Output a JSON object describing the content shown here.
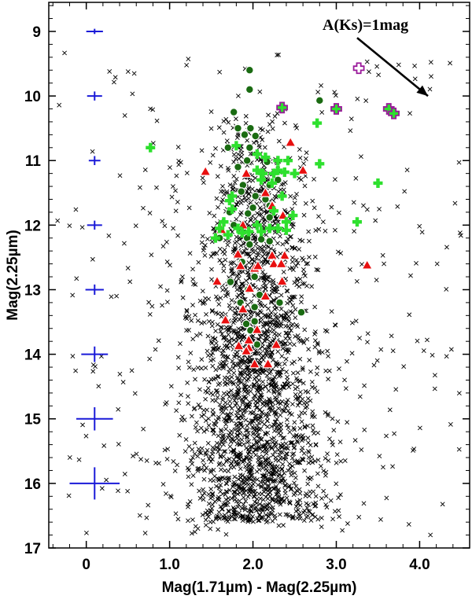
{
  "chart_data": {
    "type": "scatter",
    "title": "",
    "xlabel": "Mag(1.71µm) - Mag(2.25µm)",
    "ylabel": "Mag(2.25µm)",
    "xlim": [
      -0.45,
      4.6
    ],
    "ylim": [
      17,
      8.55
    ],
    "y_inverted": true,
    "x_ticks": [
      "0",
      "1.0",
      "2.0",
      "3.0",
      "4.0"
    ],
    "x_tick_values": [
      0,
      1,
      2,
      3,
      4
    ],
    "y_ticks": [
      "9",
      "10",
      "11",
      "12",
      "13",
      "14",
      "15",
      "16",
      "17"
    ],
    "y_tick_values": [
      9,
      10,
      11,
      12,
      13,
      14,
      15,
      16,
      17
    ],
    "grid": false,
    "legend": "none",
    "annotation": {
      "text": "A(Ks)=1mag",
      "vector_from": [
        3.25,
        9.1
      ],
      "vector_to": [
        4.1,
        10.0
      ]
    },
    "error_bars": [
      {
        "x": 0.1,
        "y": 9,
        "xerr": 0.1,
        "yerr": 0.04
      },
      {
        "x": 0.1,
        "y": 10,
        "xerr": 0.09,
        "yerr": 0.07
      },
      {
        "x": 0.1,
        "y": 11,
        "xerr": 0.07,
        "yerr": 0.07
      },
      {
        "x": 0.1,
        "y": 12,
        "xerr": 0.09,
        "yerr": 0.07
      },
      {
        "x": 0.1,
        "y": 13,
        "xerr": 0.11,
        "yerr": 0.08
      },
      {
        "x": 0.1,
        "y": 14,
        "xerr": 0.16,
        "yerr": 0.12
      },
      {
        "x": 0.1,
        "y": 15,
        "xerr": 0.22,
        "yerr": 0.18
      },
      {
        "x": 0.1,
        "y": 16,
        "xerr": 0.3,
        "yerr": 0.25
      }
    ],
    "background_sources": {
      "marker": "x",
      "color": "#000000",
      "count": 2600,
      "core_center": [
        2.05,
        14.5
      ],
      "note": "dense field-star cloud concentrated at color 1.5-2.5 and Mag 10-16.5, with sparse outliers over the whole diagram"
    },
    "series": [
      {
        "marker": "circle",
        "color": "#1a6b12",
        "points": [
          [
            1.96,
            9.6
          ],
          [
            1.96,
            9.9
          ],
          [
            2.8,
            10.07
          ],
          [
            1.77,
            10.25
          ],
          [
            1.82,
            10.5
          ],
          [
            1.97,
            10.5
          ],
          [
            2.03,
            10.62
          ],
          [
            1.9,
            10.6
          ],
          [
            1.7,
            10.8
          ],
          [
            1.96,
            10.8
          ],
          [
            1.93,
            11.0
          ],
          [
            2.17,
            11.02
          ],
          [
            1.82,
            11.1
          ],
          [
            2.3,
            11.3
          ],
          [
            1.88,
            11.38
          ],
          [
            2.2,
            11.38
          ],
          [
            1.86,
            11.48
          ],
          [
            2.03,
            11.55
          ],
          [
            2.15,
            11.6
          ],
          [
            2.2,
            11.7
          ],
          [
            2.0,
            11.73
          ],
          [
            1.94,
            11.82
          ],
          [
            1.72,
            11.8
          ],
          [
            2.2,
            11.88
          ],
          [
            1.77,
            12.0
          ],
          [
            1.6,
            12.2
          ],
          [
            1.93,
            12.2
          ],
          [
            2.1,
            12.22
          ],
          [
            2.2,
            12.25
          ],
          [
            1.96,
            12.3
          ],
          [
            1.87,
            12.57
          ],
          [
            2.02,
            12.8
          ],
          [
            1.73,
            12.88
          ],
          [
            1.94,
            13.0
          ],
          [
            2.08,
            13.08
          ],
          [
            2.32,
            13.2
          ],
          [
            1.85,
            13.2
          ],
          [
            2.02,
            13.27
          ],
          [
            2.58,
            13.35
          ],
          [
            1.92,
            13.53
          ],
          [
            2.02,
            13.49
          ],
          [
            1.97,
            13.63
          ],
          [
            2.05,
            13.85
          ]
        ]
      },
      {
        "marker": "triangle",
        "color": "#e81010",
        "points": [
          [
            2.45,
            10.72
          ],
          [
            1.43,
            11.17
          ],
          [
            2.6,
            11.15
          ],
          [
            1.92,
            11.2
          ],
          [
            2.15,
            11.5
          ],
          [
            2.23,
            11.7
          ],
          [
            2.36,
            11.85
          ],
          [
            1.88,
            12.0
          ],
          [
            1.62,
            12.07
          ],
          [
            1.82,
            12.45
          ],
          [
            2.23,
            12.47
          ],
          [
            2.38,
            12.47
          ],
          [
            1.85,
            12.63
          ],
          [
            2.25,
            12.6
          ],
          [
            2.02,
            12.67
          ],
          [
            2.06,
            12.63
          ],
          [
            2.34,
            12.6
          ],
          [
            1.57,
            12.87
          ],
          [
            2.35,
            12.87
          ],
          [
            1.96,
            12.98
          ],
          [
            3.37,
            12.62
          ],
          [
            2.15,
            13.1
          ],
          [
            1.88,
            13.3
          ],
          [
            2.05,
            13.62
          ],
          [
            1.67,
            13.47
          ],
          [
            1.83,
            13.87
          ],
          [
            1.95,
            13.9
          ],
          [
            1.92,
            13.95
          ],
          [
            2.28,
            13.85
          ],
          [
            2.02,
            14.15
          ],
          [
            2.18,
            14.15
          ],
          [
            1.95,
            13.78
          ]
        ]
      },
      {
        "marker": "plus",
        "color": "#2ee02e",
        "points": [
          [
            0.77,
            10.8
          ],
          [
            2.77,
            10.42
          ],
          [
            1.8,
            10.77
          ],
          [
            2.05,
            10.9
          ],
          [
            2.15,
            10.95
          ],
          [
            2.3,
            11.0
          ],
          [
            2.42,
            11.0
          ],
          [
            2.8,
            11.05
          ],
          [
            2.05,
            11.15
          ],
          [
            2.12,
            11.2
          ],
          [
            2.25,
            11.2
          ],
          [
            2.3,
            11.15
          ],
          [
            2.38,
            11.18
          ],
          [
            2.5,
            11.2
          ],
          [
            3.5,
            11.35
          ],
          [
            2.1,
            11.3
          ],
          [
            2.23,
            11.35
          ],
          [
            1.75,
            11.55
          ],
          [
            1.72,
            11.62
          ],
          [
            1.75,
            11.75
          ],
          [
            2.35,
            11.55
          ],
          [
            2.25,
            11.78
          ],
          [
            1.65,
            11.95
          ],
          [
            2.48,
            11.85
          ],
          [
            3.25,
            11.95
          ],
          [
            2.4,
            11.95
          ],
          [
            1.82,
            12.05
          ],
          [
            2.05,
            12.0
          ],
          [
            1.6,
            12.05
          ],
          [
            1.95,
            12.1
          ],
          [
            2.2,
            12.05
          ],
          [
            1.7,
            12.15
          ],
          [
            2.3,
            12.05
          ],
          [
            1.87,
            12.12
          ],
          [
            1.55,
            12.2
          ],
          [
            2.4,
            12.08
          ],
          [
            2.1,
            12.1
          ]
        ]
      },
      {
        "marker": "plus-outlined",
        "color": "#9a1a9a",
        "fill": "#ffffff",
        "points": [
          [
            3.27,
            9.57
          ]
        ]
      },
      {
        "marker": "plus-outlined",
        "color": "#9a1a9a",
        "fill": "#2ee02e",
        "points": [
          [
            2.35,
            10.18
          ],
          [
            3.0,
            10.2
          ],
          [
            3.63,
            10.2
          ],
          [
            3.69,
            10.27
          ]
        ]
      }
    ]
  }
}
